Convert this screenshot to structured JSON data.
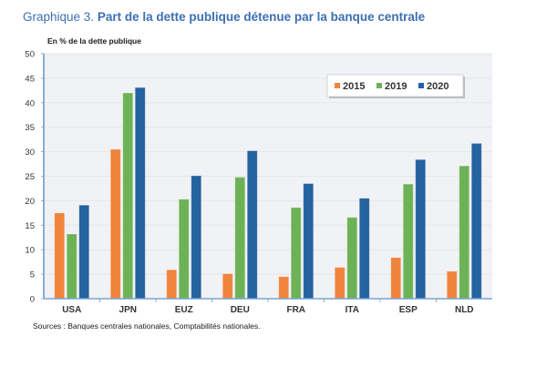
{
  "header": {
    "title_prefix": "Graphique 3.",
    "title_main": "Part de la dette publique détenue par la banque centrale",
    "unit_label": "En % de la dette publique"
  },
  "footer": {
    "source": "Sources : Banques centrales nationales, Comptabilités nationales."
  },
  "colors": {
    "title": "#3c6fb3",
    "plot_background": "#f1f2f5",
    "axis": "#7ba3d4",
    "series_2015": "#f0843c",
    "series_2019": "#6db257",
    "series_2020": "#2462a0"
  },
  "chart_data": {
    "type": "bar",
    "title": "Part de la dette publique détenue par la banque centrale",
    "xlabel": "",
    "ylabel": "En % de la dette publique",
    "ylim": [
      0,
      50
    ],
    "yticks": [
      0,
      5,
      10,
      15,
      20,
      25,
      30,
      35,
      40,
      45,
      50
    ],
    "grid": true,
    "legend_position": "top-right",
    "categories": [
      "USA",
      "JPN",
      "EUZ",
      "DEU",
      "FRA",
      "ITA",
      "ESP",
      "NLD"
    ],
    "series": [
      {
        "name": "2015",
        "color": "#f0843c",
        "values": [
          17.5,
          30.5,
          5.9,
          5.1,
          4.5,
          6.4,
          8.4,
          5.6
        ]
      },
      {
        "name": "2019",
        "color": "#6db257",
        "values": [
          13.2,
          42.0,
          20.3,
          24.8,
          18.6,
          16.6,
          23.4,
          27.1
        ]
      },
      {
        "name": "2020",
        "color": "#2462a0",
        "values": [
          19.1,
          43.1,
          25.1,
          30.2,
          23.5,
          20.5,
          28.4,
          31.7
        ]
      }
    ],
    "source": "Sources : Banques centrales nationales, Comptabilités nationales."
  }
}
